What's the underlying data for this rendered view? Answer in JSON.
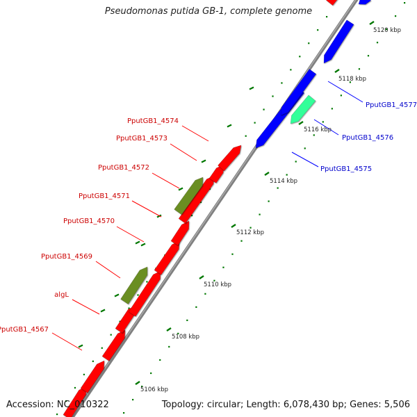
{
  "title": "Pseudomonas putida GB-1, complete genome",
  "footer": {
    "accession_label": "Accession:",
    "accession": "NC_010322",
    "topology_label": "Topology:",
    "topology": "circular",
    "length_label": "Length:",
    "length": "6,078,430 bp",
    "genes_label": "Genes:",
    "genes": "5,506"
  },
  "colors": {
    "forward_gene": "#ff0000",
    "reverse_gene": "#0000ff",
    "forward_highlight": "#6b8e23",
    "reverse_highlight": "#33ff99",
    "backbone": "#808080",
    "ticks": "#007700",
    "forward_label": "#cc0000",
    "reverse_label": "#0000cc"
  },
  "scale_ticks": [
    "5106 kbp",
    "5108 kbp",
    "5110 kbp",
    "5112 kbp",
    "5114 kbp",
    "5116 kbp",
    "5118 kbp",
    "5120 kbp"
  ],
  "forward_labels": [
    "PputGB1_4574",
    "PputGB1_4573",
    "PputGB1_4572",
    "PputGB1_4571",
    "PputGB1_4570",
    "PputGB1_4569",
    "algL",
    "PputGB1_4567"
  ],
  "reverse_labels": [
    "PputGB1_4577",
    "PputGB1_4576",
    "PputGB1_4575"
  ]
}
